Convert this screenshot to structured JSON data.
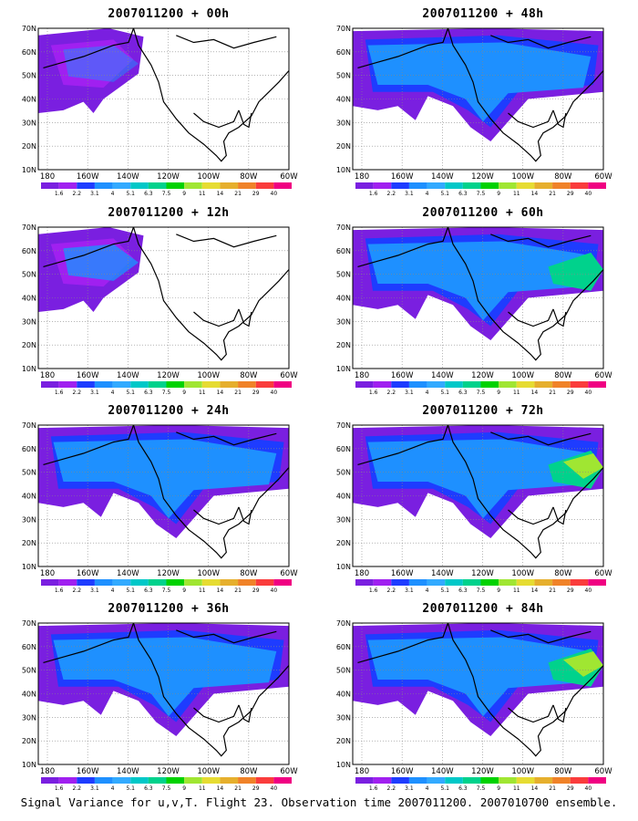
{
  "figure": {
    "footer_caption": "Signal Variance for u,v,T. Flight 23. Observation time 2007011200. 2007010700 ensemble."
  },
  "map_axes": {
    "lat_labels": [
      "70N",
      "60N",
      "50N",
      "40N",
      "30N",
      "20N",
      "10N"
    ],
    "lon_labels": [
      "180",
      "160W",
      "140W",
      "120W",
      "100W",
      "80W",
      "60W"
    ]
  },
  "colorbar": {
    "levels": [
      "1.6",
      "2.2",
      "3.1",
      "4",
      "5.1",
      "6.3",
      "7.5",
      "9",
      "11",
      "14",
      "21",
      "29",
      "40"
    ],
    "colors": [
      "#7a1fe0",
      "#a020f0",
      "#1e3cff",
      "#1e90ff",
      "#32aaff",
      "#00c8c8",
      "#00d28c",
      "#00d200",
      "#a0e632",
      "#e6dc32",
      "#e6af2d",
      "#f08228",
      "#fa3c3c",
      "#f00082"
    ]
  },
  "panels": [
    {
      "title": "2007011200 + 00h"
    },
    {
      "title": "2007011200 + 12h"
    },
    {
      "title": "2007011200 + 24h"
    },
    {
      "title": "2007011200 + 36h"
    },
    {
      "title": "2007011200 + 48h"
    },
    {
      "title": "2007011200 + 60h"
    },
    {
      "title": "2007011200 + 72h"
    },
    {
      "title": "2007011200 + 84h"
    }
  ]
}
